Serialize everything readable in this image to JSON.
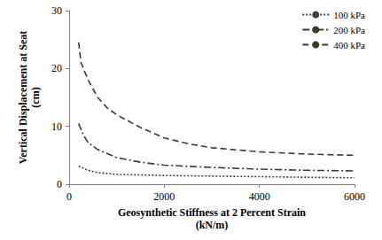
{
  "chart_data": {
    "type": "line",
    "x_label": "Geosynthetic Stiffness at 2 Percent Strain\n(kN/m)",
    "y_label": "Vertical Displacement at Seat\n(cm)",
    "xlim": [
      0,
      6000
    ],
    "xticks": [
      0,
      2000,
      4000,
      6000
    ],
    "ylim": [
      0,
      30
    ],
    "yticks": [
      0,
      10,
      20,
      30
    ],
    "grid": false,
    "legend": "top-right",
    "series": [
      {
        "name": "100 kPa",
        "color": "#404040",
        "line_style": "dotted",
        "x": [
          200,
          400,
          600,
          1000,
          2000,
          3000,
          4000,
          5000,
          6000
        ],
        "values": [
          3.1,
          2.4,
          2.0,
          1.7,
          1.5,
          1.4,
          1.3,
          1.2,
          1.1
        ]
      },
      {
        "name": "200 kPa",
        "color": "#3b3b2a",
        "line_style": "dash-dot",
        "x": [
          200,
          300,
          400,
          600,
          1000,
          1500,
          2000,
          3000,
          4000,
          5000,
          6000
        ],
        "values": [
          10.5,
          8.5,
          7.2,
          6.0,
          4.6,
          3.8,
          3.3,
          2.9,
          2.6,
          2.4,
          2.3
        ]
      },
      {
        "name": "400 kPa",
        "color": "#3b3b2a",
        "line_style": "dashed",
        "x": [
          200,
          250,
          400,
          600,
          800,
          1000,
          1500,
          2000,
          2500,
          3000,
          4000,
          5000,
          6000
        ],
        "values": [
          24.5,
          21.0,
          18.0,
          15.0,
          13.2,
          12.0,
          9.8,
          8.0,
          7.0,
          6.3,
          5.6,
          5.2,
          5.0
        ]
      }
    ]
  }
}
